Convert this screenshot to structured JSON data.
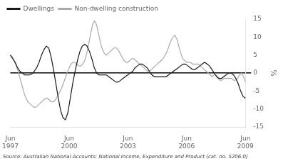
{
  "chart_data": {
    "type": "line",
    "ylabel": "%",
    "source": "Source: Australian National Accounts: National Income, Expenditure and Product (cat. no. 5206.0)",
    "xlim": [
      0,
      48
    ],
    "xticks": [
      {
        "value": 0,
        "label": "Jun\n1997"
      },
      {
        "value": 12,
        "label": "Jun\n2000"
      },
      {
        "value": 24,
        "label": "Jun\n2003"
      },
      {
        "value": 36,
        "label": "Jun\n2006"
      },
      {
        "value": 48,
        "label": "Jun\n2009"
      }
    ],
    "ylim": [
      -15,
      15
    ],
    "yticks": [
      -15,
      -10,
      -5,
      0,
      5,
      10,
      15
    ],
    "grid": false,
    "legend": "upper left",
    "reference_line": {
      "value": 0,
      "color": "#000000"
    },
    "series": [
      {
        "name": "Dwellings",
        "color": "#1a1a1a",
        "values": [
          5.0,
          4.0,
          3.0,
          1.5,
          0.5,
          0.0,
          -0.5,
          -0.5,
          -0.5,
          -0.2,
          0.5,
          1.5,
          3.0,
          5.0,
          6.5,
          7.5,
          7.0,
          4.5,
          1.0,
          -3.0,
          -7.0,
          -10.5,
          -12.5,
          -13.0,
          -11.0,
          -7.0,
          -3.0,
          0.5,
          3.5,
          6.0,
          7.5,
          8.0,
          7.5,
          6.0,
          4.0,
          1.5,
          0.0,
          -0.5,
          -0.5,
          -0.5,
          -0.5,
          -1.0,
          -1.5,
          -2.0,
          -2.5,
          -2.5,
          -2.0,
          -1.5,
          -1.0,
          -0.5,
          0.0,
          0.5,
          1.5,
          2.0,
          2.5,
          2.5,
          2.0,
          1.5,
          0.5,
          -0.5,
          -1.0,
          -1.0,
          -1.0,
          -1.0,
          -1.0,
          -1.0,
          -0.5,
          0.0,
          0.5,
          1.0,
          1.5,
          2.0,
          2.5,
          2.5,
          2.0,
          1.5,
          1.0,
          1.0,
          1.5,
          2.0,
          2.5,
          3.0,
          2.5,
          2.0,
          1.0,
          0.0,
          -1.0,
          -1.5,
          -1.5,
          -1.0,
          -0.5,
          0.0,
          0.0,
          -0.5,
          -1.5,
          -3.0,
          -5.0,
          -6.5,
          -7.0
        ]
      },
      {
        "name": "Non-dwelling construction",
        "color": "#aaaaaa",
        "values": [
          5.0,
          4.5,
          3.5,
          2.0,
          0.5,
          -1.5,
          -3.5,
          -5.5,
          -7.0,
          -8.0,
          -8.5,
          -9.0,
          -9.5,
          -9.5,
          -9.0,
          -8.5,
          -8.0,
          -7.5,
          -7.0,
          -7.0,
          -7.5,
          -8.0,
          -8.0,
          -7.5,
          -6.5,
          -5.5,
          -4.5,
          -3.0,
          -1.5,
          0.0,
          1.5,
          2.5,
          3.0,
          3.0,
          2.5,
          2.0,
          2.0,
          2.5,
          3.5,
          5.5,
          8.0,
          11.0,
          13.5,
          14.5,
          13.5,
          11.0,
          8.5,
          6.5,
          5.5,
          5.0,
          5.5,
          6.0,
          6.5,
          7.0,
          7.0,
          6.5,
          5.5,
          4.5,
          3.5,
          3.0,
          3.0,
          3.5,
          4.0,
          4.0,
          3.5,
          3.0,
          2.5,
          2.0,
          1.5,
          1.0,
          0.5,
          0.5,
          1.0,
          1.5,
          2.0,
          2.5,
          3.0,
          3.5,
          4.0,
          5.0,
          6.0,
          7.5,
          9.0,
          10.0,
          10.5,
          9.5,
          7.5,
          5.5,
          4.0,
          3.5,
          3.0,
          3.0,
          3.0,
          2.5,
          2.5,
          2.5,
          2.5,
          2.0,
          1.5,
          1.0,
          0.5,
          0.0,
          -0.5,
          -1.0,
          -0.5,
          -0.5,
          -1.5,
          -2.0,
          -2.0,
          -1.5,
          -1.5,
          -1.5,
          -1.5,
          -1.5,
          -2.0,
          -2.0,
          -1.5,
          -0.5,
          0.0,
          -1.0,
          -2.5
        ]
      }
    ]
  }
}
